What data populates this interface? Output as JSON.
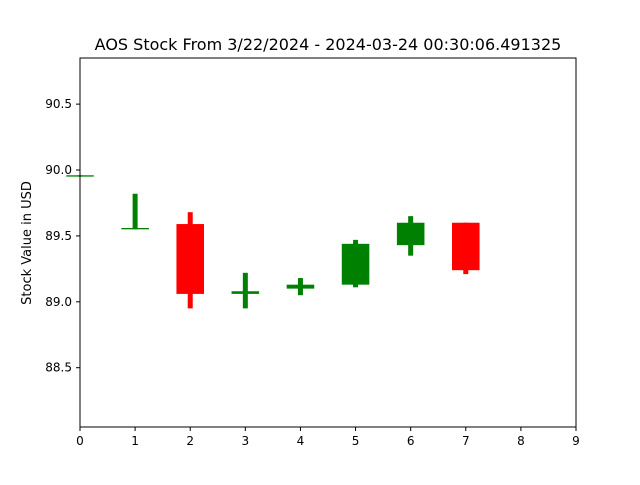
{
  "chart_data": {
    "type": "candlestick",
    "title": "AOS Stock From 3/22/2024 - 2024-03-24 00:30:06.491325",
    "xlabel": "",
    "ylabel": "Stock Value in USD",
    "xlim": [
      0,
      9
    ],
    "ylim": [
      88.05,
      90.85
    ],
    "x_ticks": [
      0,
      1,
      2,
      3,
      4,
      5,
      6,
      7,
      8,
      9
    ],
    "y_ticks": [
      88.5,
      89.0,
      89.5,
      90.0,
      90.5
    ],
    "grid": false,
    "legend": "none",
    "colors": {
      "up": "#008000",
      "down": "#ff0000"
    },
    "candles": [
      {
        "x": 0,
        "open": 89.95,
        "high": 89.96,
        "low": 89.95,
        "close": 89.96
      },
      {
        "x": 1,
        "open": 89.55,
        "high": 89.82,
        "low": 89.55,
        "close": 89.56
      },
      {
        "x": 2,
        "open": 89.59,
        "high": 89.68,
        "low": 88.95,
        "close": 89.06
      },
      {
        "x": 3,
        "open": 89.06,
        "high": 89.22,
        "low": 88.95,
        "close": 89.08
      },
      {
        "x": 4,
        "open": 89.1,
        "high": 89.18,
        "low": 89.05,
        "close": 89.13
      },
      {
        "x": 5,
        "open": 89.13,
        "high": 89.47,
        "low": 89.11,
        "close": 89.44
      },
      {
        "x": 6,
        "open": 89.43,
        "high": 89.65,
        "low": 89.35,
        "close": 89.6
      },
      {
        "x": 7,
        "open": 89.6,
        "high": 89.6,
        "low": 89.21,
        "close": 89.24
      }
    ]
  }
}
